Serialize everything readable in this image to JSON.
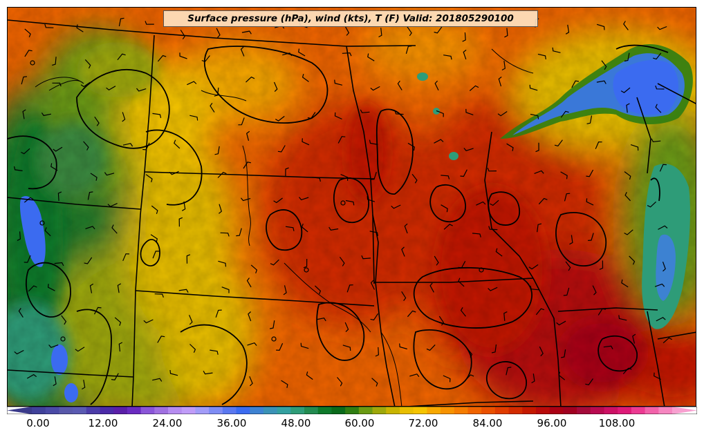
{
  "title": "Surface pressure (hPa), wind (kts), T (F) Valid: 201805290100",
  "colorbar": {
    "tick_labels": [
      "0.00",
      "12.00",
      "24.00",
      "36.00",
      "48.00",
      "60.00",
      "72.00",
      "84.00",
      "96.00",
      "108.00"
    ],
    "colors": [
      "#3a3a8a",
      "#40419a",
      "#4a4aa6",
      "#5858aa",
      "#5a5ab2",
      "#4b3ca8",
      "#4b2aa8",
      "#5a1ea8",
      "#6a2ac0",
      "#8a55d8",
      "#a070e0",
      "#b68cf0",
      "#c09cf8",
      "#a29cf8",
      "#7e8cf4",
      "#5a78f0",
      "#3b6bf0",
      "#3d82d2",
      "#3a92b6",
      "#33a0a0",
      "#2e9c78",
      "#228b50",
      "#0e7a2a",
      "#0a6a1a",
      "#2f7d12",
      "#6a9a12",
      "#9ea80a",
      "#c8b400",
      "#e8be00",
      "#f5c400",
      "#f7a800",
      "#f79200",
      "#f57c00",
      "#f06400",
      "#ea5000",
      "#e03c00",
      "#d22a00",
      "#c41800",
      "#b80a0a",
      "#aa0014",
      "#a00020",
      "#a40a3a",
      "#b80a50",
      "#cc1064",
      "#de1a78",
      "#ec3a92",
      "#f262aa",
      "#f686c0",
      "#f8a0d0"
    ]
  }
}
